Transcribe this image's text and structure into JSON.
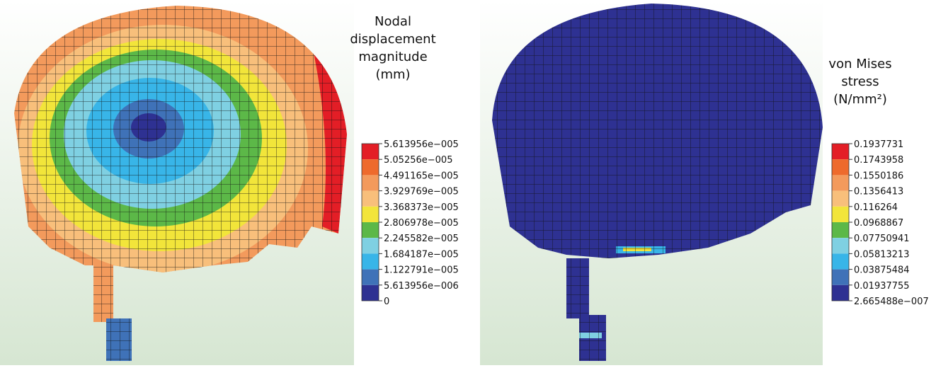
{
  "panels": [
    {
      "legend_title": [
        "Nodal",
        "displacement",
        "magnitude",
        "(mm)"
      ],
      "colors": [
        "#e31e26",
        "#ee6a2c",
        "#f39a5c",
        "#f8bf7b",
        "#f2e53a",
        "#5cb848",
        "#7fd0e2",
        "#38b5e8",
        "#3f72b8",
        "#2e3192"
      ],
      "ticks": [
        "5.613956e−005",
        "5.05256e−005",
        "4.491165e−005",
        "3.929769e−005",
        "3.368373e−005",
        "2.806978e−005",
        "2.245582e−005",
        "1.684187e−005",
        "1.122791e−005",
        "5.613956e−006",
        "0"
      ]
    },
    {
      "legend_title": [
        "von Mises",
        "stress",
        "(N/mm²)"
      ],
      "colors": [
        "#e31e26",
        "#ee6a2c",
        "#f39a5c",
        "#f8bf7b",
        "#f2e53a",
        "#5cb848",
        "#7fd0e2",
        "#38b5e8",
        "#3f72b8",
        "#2e3192"
      ],
      "ticks": [
        "0.1937731",
        "0.1743958",
        "0.1550186",
        "0.1356413",
        "0.116264",
        "0.0968867",
        "0.07750941",
        "0.05813213",
        "0.03875484",
        "0.01937755",
        "2.665488e−007"
      ]
    }
  ]
}
